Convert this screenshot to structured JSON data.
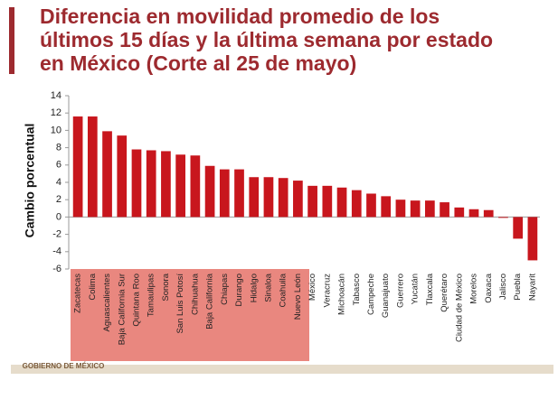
{
  "chart_data": {
    "type": "bar",
    "title_lines": [
      "Diferencia en movilidad promedio de los",
      "últimos 15 días y la última semana por estado",
      "en México (Corte al 25 de mayo)"
    ],
    "y_label": "Cambio porcentual",
    "logo": "GOBIERNO DE MÉXICO",
    "categories": [
      "Zacatecas",
      "Colima",
      "Aguascalientes",
      "Baja California Sur",
      "Quintana Roo",
      "Tamaulipas",
      "Sonora",
      "San Luis Potosí",
      "Chihuahua",
      "Baja California",
      "Chiapas",
      "Durango",
      "Hidalgo",
      "Sinaloa",
      "Coahuila",
      "Nuevo León",
      "México",
      "Veracruz",
      "Michoacán",
      "Tabasco",
      "Campeche",
      "Guanajuato",
      "Guerrero",
      "Yucatán",
      "Tlaxcala",
      "Querétaro",
      "Ciudad de México",
      "Morelos",
      "Oaxaca",
      "Jalisco",
      "Puebla",
      "Nayarit"
    ],
    "values": [
      11.6,
      11.6,
      9.9,
      9.4,
      7.8,
      7.7,
      7.6,
      7.2,
      7.1,
      5.9,
      5.5,
      5.5,
      4.6,
      4.6,
      4.5,
      4.2,
      3.6,
      3.6,
      3.4,
      3.1,
      2.7,
      2.4,
      2.0,
      1.9,
      1.9,
      1.7,
      1.1,
      0.9,
      0.8,
      -0.1,
      -2.5,
      -5.0
    ],
    "color": "#c8161d",
    "ylim": [
      -6,
      14
    ],
    "yticks": [
      -6,
      -4,
      -2,
      0,
      2,
      4,
      6,
      8,
      10,
      12,
      14
    ],
    "grid": false
  }
}
